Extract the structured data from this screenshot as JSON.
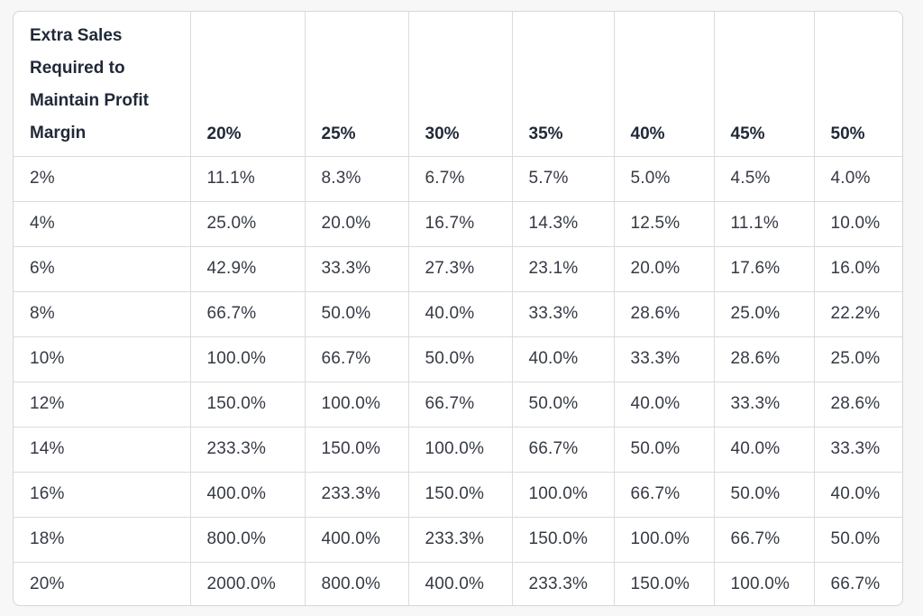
{
  "chart_data": {
    "type": "table",
    "corner_header": "Extra Sales Required to Maintain Profit Margin",
    "columns": [
      "20%",
      "25%",
      "30%",
      "35%",
      "40%",
      "45%",
      "50%"
    ],
    "rows": [
      {
        "label": "2%",
        "values": [
          "11.1%",
          "8.3%",
          "6.7%",
          "5.7%",
          "5.0%",
          "4.5%",
          "4.0%"
        ]
      },
      {
        "label": "4%",
        "values": [
          "25.0%",
          "20.0%",
          "16.7%",
          "14.3%",
          "12.5%",
          "11.1%",
          "10.0%"
        ]
      },
      {
        "label": "6%",
        "values": [
          "42.9%",
          "33.3%",
          "27.3%",
          "23.1%",
          "20.0%",
          "17.6%",
          "16.0%"
        ]
      },
      {
        "label": "8%",
        "values": [
          "66.7%",
          "50.0%",
          "40.0%",
          "33.3%",
          "28.6%",
          "25.0%",
          "22.2%"
        ]
      },
      {
        "label": "10%",
        "values": [
          "100.0%",
          "66.7%",
          "50.0%",
          "40.0%",
          "33.3%",
          "28.6%",
          "25.0%"
        ]
      },
      {
        "label": "12%",
        "values": [
          "150.0%",
          "100.0%",
          "66.7%",
          "50.0%",
          "40.0%",
          "33.3%",
          "28.6%"
        ]
      },
      {
        "label": "14%",
        "values": [
          "233.3%",
          "150.0%",
          "100.0%",
          "66.7%",
          "50.0%",
          "40.0%",
          "33.3%"
        ]
      },
      {
        "label": "16%",
        "values": [
          "400.0%",
          "233.3%",
          "150.0%",
          "100.0%",
          "66.7%",
          "50.0%",
          "40.0%"
        ]
      },
      {
        "label": "18%",
        "values": [
          "800.0%",
          "400.0%",
          "233.3%",
          "150.0%",
          "100.0%",
          "66.7%",
          "50.0%"
        ]
      },
      {
        "label": "20%",
        "values": [
          "2000.0%",
          "800.0%",
          "400.0%",
          "233.3%",
          "150.0%",
          "100.0%",
          "66.7%"
        ]
      }
    ]
  }
}
